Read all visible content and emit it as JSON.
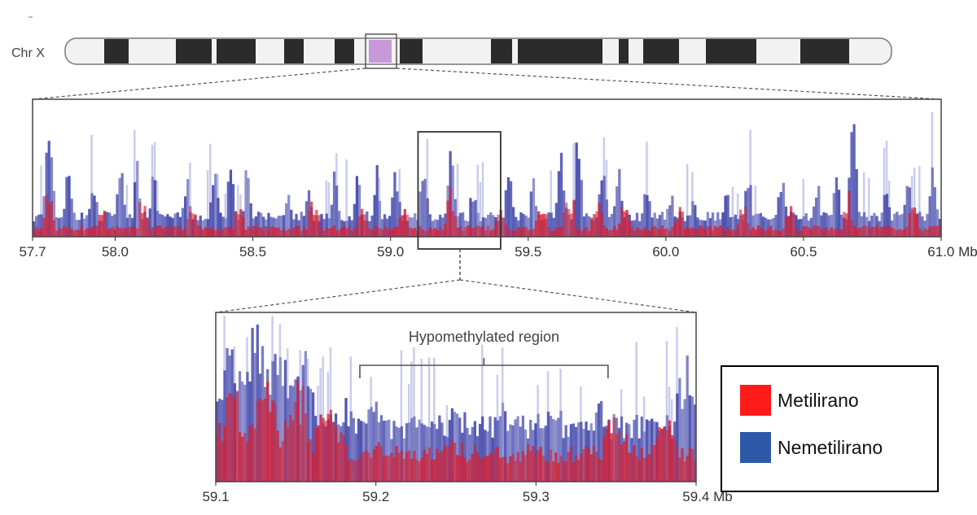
{
  "chromosome": {
    "label": "Chr X"
  },
  "chart_data": [
    {
      "type": "bar",
      "panel": "overview",
      "x_start": 57.7,
      "x_end": 61.0,
      "ticks": [
        {
          "value": 57.7,
          "label": "57.7"
        },
        {
          "value": 58.0,
          "label": "58.0"
        },
        {
          "value": 58.5,
          "label": "58.5"
        },
        {
          "value": 59.0,
          "label": "59.0"
        },
        {
          "value": 59.5,
          "label": "59.5"
        },
        {
          "value": 60.0,
          "label": "60.0"
        },
        {
          "value": 60.5,
          "label": "60.5"
        },
        {
          "value": 61.0,
          "label": "61.0 Mb"
        }
      ],
      "zoom_box": [
        59.1,
        59.4
      ],
      "series": [
        {
          "name": "Nemetilirano",
          "color": "#3a3fa8",
          "peaks": [
            [
              57.76,
              0.82
            ],
            [
              57.83,
              0.45
            ],
            [
              57.92,
              0.45
            ],
            [
              58.02,
              0.45
            ],
            [
              58.08,
              0.5
            ],
            [
              58.14,
              0.48
            ],
            [
              58.26,
              0.4
            ],
            [
              58.36,
              0.45
            ],
            [
              58.42,
              0.5
            ],
            [
              58.48,
              0.5
            ],
            [
              58.63,
              0.35
            ],
            [
              58.7,
              0.35
            ],
            [
              58.8,
              0.45
            ],
            [
              58.88,
              0.4
            ],
            [
              58.95,
              0.52
            ],
            [
              59.02,
              0.45
            ],
            [
              59.12,
              0.55
            ],
            [
              59.22,
              0.62
            ],
            [
              59.3,
              0.35
            ],
            [
              59.43,
              0.45
            ],
            [
              59.52,
              0.4
            ],
            [
              59.62,
              0.6
            ],
            [
              59.68,
              0.65
            ],
            [
              59.77,
              0.55
            ],
            [
              59.83,
              0.5
            ],
            [
              59.93,
              0.4
            ],
            [
              60.02,
              0.35
            ],
            [
              60.1,
              0.35
            ],
            [
              60.22,
              0.38
            ],
            [
              60.3,
              0.45
            ],
            [
              60.42,
              0.45
            ],
            [
              60.55,
              0.38
            ],
            [
              60.62,
              0.4
            ],
            [
              60.68,
              0.75
            ],
            [
              60.8,
              0.3
            ],
            [
              60.88,
              0.35
            ],
            [
              60.97,
              0.48
            ]
          ]
        },
        {
          "name": "Metilirano",
          "color": "#d92030",
          "peaks": [
            [
              57.76,
              0.35
            ],
            [
              57.95,
              0.25
            ],
            [
              58.1,
              0.3
            ],
            [
              58.28,
              0.25
            ],
            [
              58.45,
              0.35
            ],
            [
              58.72,
              0.55
            ],
            [
              58.9,
              0.25
            ],
            [
              59.05,
              0.3
            ],
            [
              59.22,
              0.35
            ],
            [
              59.4,
              0.25
            ],
            [
              59.55,
              0.4
            ],
            [
              59.65,
              0.55
            ],
            [
              59.75,
              0.45
            ],
            [
              59.85,
              0.3
            ],
            [
              60.05,
              0.25
            ],
            [
              60.28,
              0.4
            ],
            [
              60.45,
              0.25
            ],
            [
              60.66,
              0.35
            ],
            [
              60.9,
              0.3
            ]
          ]
        }
      ]
    },
    {
      "type": "bar",
      "panel": "zoom",
      "x_start": 59.1,
      "x_end": 59.4,
      "ticks": [
        {
          "value": 59.1,
          "label": "59.1"
        },
        {
          "value": 59.2,
          "label": "59.2"
        },
        {
          "value": 59.3,
          "label": "59.3"
        },
        {
          "value": 59.4,
          "label": "59.4 Mb"
        }
      ],
      "annotation": {
        "text": "Hypomethylated region",
        "x_start": 59.19,
        "x_end": 59.345
      },
      "series": [
        {
          "name": "Nemetilirano",
          "color": "#3a3fa8",
          "peaks": [
            [
              59.11,
              0.75
            ],
            [
              59.125,
              0.85
            ],
            [
              59.14,
              0.8
            ],
            [
              59.155,
              0.7
            ],
            [
              59.18,
              0.45
            ],
            [
              59.2,
              0.45
            ],
            [
              59.23,
              0.42
            ],
            [
              59.25,
              0.45
            ],
            [
              59.28,
              0.42
            ],
            [
              59.31,
              0.45
            ],
            [
              59.34,
              0.48
            ],
            [
              59.37,
              0.42
            ],
            [
              59.395,
              0.65
            ]
          ]
        },
        {
          "name": "Metilirano",
          "color": "#d92030",
          "peaks": [
            [
              59.11,
              0.5
            ],
            [
              59.13,
              0.6
            ],
            [
              59.15,
              0.55
            ],
            [
              59.17,
              0.45
            ],
            [
              59.2,
              0.25
            ],
            [
              59.25,
              0.22
            ],
            [
              59.3,
              0.25
            ],
            [
              59.35,
              0.35
            ],
            [
              59.38,
              0.35
            ]
          ]
        }
      ]
    }
  ],
  "legend": {
    "items": [
      {
        "label": "Metilirano",
        "color": "#ff1a1a"
      },
      {
        "label": "Nemetilirano",
        "color": "#2d5aa8"
      }
    ]
  }
}
